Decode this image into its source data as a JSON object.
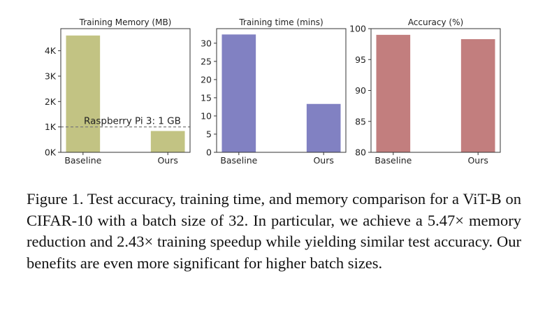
{
  "chart_data": [
    {
      "type": "bar",
      "title": "Training Memory (MB)",
      "categories": [
        "Baseline",
        "Ours"
      ],
      "values": [
        4600,
        840
      ],
      "ylim": [
        0,
        4870
      ],
      "yticks": [
        0,
        1000,
        2000,
        3000,
        4000
      ],
      "ytick_labels": [
        "0K",
        "1K",
        "2K",
        "3K",
        "4K"
      ],
      "color": "#c2c383",
      "reference_line": {
        "value": 1000,
        "label": "Raspberry Pi 3: 1 GB",
        "style": "dashed"
      }
    },
    {
      "type": "bar",
      "title": "Training time (mins)",
      "categories": [
        "Baseline",
        "Ours"
      ],
      "values": [
        32.4,
        13.3
      ],
      "ylim": [
        0,
        34
      ],
      "yticks": [
        0,
        5,
        10,
        15,
        20,
        25,
        30
      ],
      "ytick_labels": [
        "0",
        "5",
        "10",
        "15",
        "20",
        "25",
        "30"
      ],
      "color": "#8181c2"
    },
    {
      "type": "bar",
      "title": "Accuracy (%)",
      "categories": [
        "Baseline",
        "Ours"
      ],
      "values": [
        99.0,
        98.3
      ],
      "ylim": [
        80,
        100
      ],
      "yticks": [
        80,
        85,
        90,
        95,
        100
      ],
      "ytick_labels": [
        "80",
        "85",
        "90",
        "95",
        "100"
      ],
      "color": "#c27e7e"
    }
  ],
  "caption": "Figure 1.  Test accuracy, training time, and memory comparison for a ViT-B on CIFAR-10 with a batch size of 32. In particular, we achieve a 5.47× memory reduction and 2.43× training speedup while yielding similar test accuracy.  Our benefits are even more significant for higher batch sizes."
}
